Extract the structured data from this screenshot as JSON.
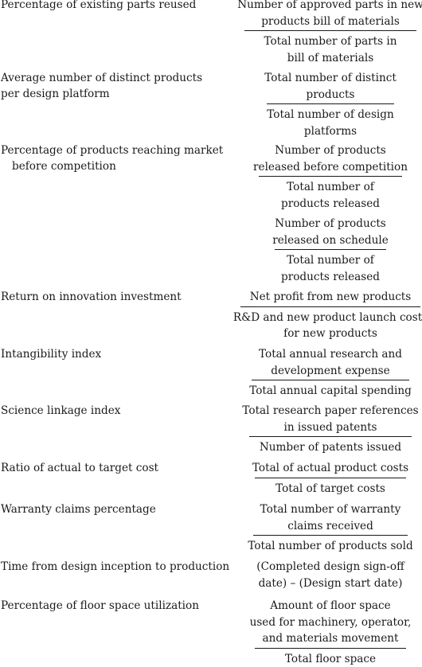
{
  "rows": [
    {
      "label": [
        "Percentage of existing parts reused"
      ],
      "num": [
        "Number of approved parts in new",
        "products bill of materials"
      ],
      "den": [
        "Total number of parts in",
        "bill of materials"
      ]
    },
    {
      "label": [
        "Average number of distinct products",
        "per design platform"
      ],
      "num": [
        "Total number of distinct",
        "products"
      ],
      "den": [
        "Total number of design",
        "platforms"
      ]
    },
    {
      "label": [
        "Percentage of products reaching market",
        "before competition"
      ],
      "num": [
        "Number of products",
        "released before competition"
      ],
      "den": [
        "Total number of",
        "products released"
      ]
    },
    {
      "label": [],
      "num": [
        "Number of products",
        "released on schedule"
      ],
      "den": [
        "Total number of",
        "products released"
      ]
    },
    {
      "label": [
        "Return on innovation investment"
      ],
      "num": [
        "Net profit from new products"
      ],
      "den": [
        "R&D and new product launch costs",
        "for new products"
      ]
    },
    {
      "label": [
        "Intangibility index"
      ],
      "num": [
        "Total annual research and",
        "development expense"
      ],
      "den": [
        "Total annual capital spending"
      ]
    },
    {
      "label": [
        "Science linkage index"
      ],
      "num": [
        "Total research paper references",
        "in issued patents"
      ],
      "den": [
        "Number of patents issued"
      ]
    },
    {
      "label": [
        "Ratio of actual to target cost"
      ],
      "num": [
        "Total of actual product costs"
      ],
      "den": [
        "Total of target costs"
      ]
    },
    {
      "label": [
        "Warranty claims percentage"
      ],
      "num": [
        "Total number of warranty",
        "claims received"
      ],
      "den": [
        "Total number of products sold"
      ]
    },
    {
      "label": [
        "Time from design inception to production"
      ],
      "plain": [
        "(Completed design sign-off",
        "date) – (Design start date)"
      ]
    },
    {
      "label": [
        "Percentage of floor space utilization"
      ],
      "num": [
        "Amount of floor space",
        "used for machinery, operator,",
        "and materials movement"
      ],
      "den": [
        "Total floor space"
      ]
    }
  ]
}
